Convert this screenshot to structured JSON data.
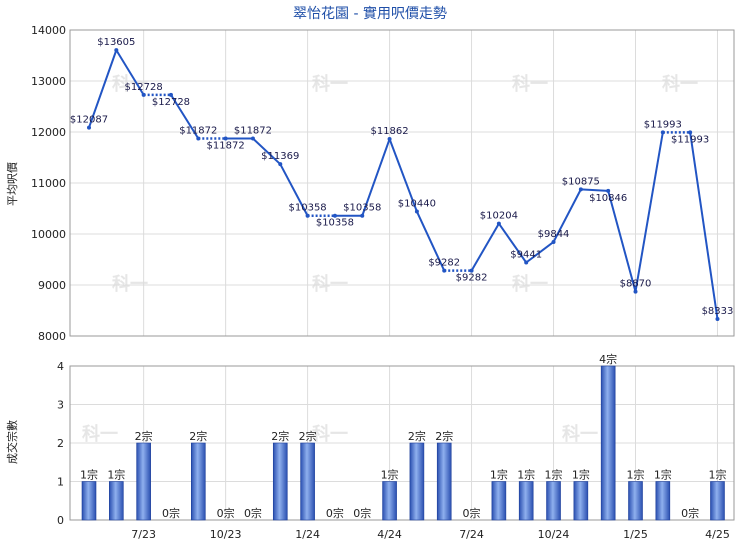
{
  "chart_data": [
    {
      "type": "line",
      "title": "翠怡花園 - 實用呎價走勢",
      "xlabel": "",
      "ylabel": "平均呎價",
      "ylim": [
        8000,
        14000
      ],
      "yticks": [
        8000,
        9000,
        10000,
        11000,
        12000,
        13000,
        14000
      ],
      "grid": true,
      "color": "#2255c4",
      "x": [
        "2023-05",
        "2023-06",
        "2023-07",
        "2023-08",
        "2023-09",
        "2023-10",
        "2023-11",
        "2023-12",
        "2024-01",
        "2024-02",
        "2024-03",
        "2024-04",
        "2024-05",
        "2024-06",
        "2024-07",
        "2024-08",
        "2024-09",
        "2024-10",
        "2024-11",
        "2024-12",
        "2025-01",
        "2025-02",
        "2025-03",
        "2025-04"
      ],
      "values": [
        12087,
        13605,
        12728,
        12728,
        11872,
        11872,
        11872,
        11369,
        10358,
        10358,
        10358,
        11862,
        10440,
        9282,
        9282,
        10204,
        9441,
        9844,
        10875,
        10846,
        8870,
        11993,
        11993,
        8333
      ],
      "labels": [
        "$12087",
        "$13605",
        "$12728",
        "$12728",
        "$11872",
        "$11872",
        "$11872",
        "$11369",
        "$10358",
        "$10358",
        "$10358",
        "$11862",
        "$10440",
        "$9282",
        "$9282",
        "$10204",
        "$9441",
        "$9844",
        "$10875",
        "$10846",
        "$8870",
        "$11993",
        "$11993",
        "$8333"
      ],
      "carried": [
        false,
        false,
        false,
        true,
        false,
        true,
        false,
        false,
        false,
        true,
        false,
        false,
        false,
        false,
        true,
        false,
        false,
        false,
        false,
        false,
        false,
        false,
        true,
        false
      ]
    },
    {
      "type": "bar",
      "xlabel": "",
      "ylabel": "成交宗數",
      "ylim": [
        0,
        4
      ],
      "yticks": [
        0,
        1,
        2,
        3,
        4
      ],
      "grid": true,
      "color": "#3a62c8",
      "x": [
        "2023-05",
        "2023-06",
        "2023-07",
        "2023-08",
        "2023-09",
        "2023-10",
        "2023-11",
        "2023-12",
        "2024-01",
        "2024-02",
        "2024-03",
        "2024-04",
        "2024-05",
        "2024-06",
        "2024-07",
        "2024-08",
        "2024-09",
        "2024-10",
        "2024-11",
        "2024-12",
        "2025-01",
        "2025-02",
        "2025-03",
        "2025-04"
      ],
      "values": [
        1,
        1,
        2,
        0,
        2,
        0,
        0,
        2,
        2,
        0,
        0,
        1,
        2,
        2,
        0,
        1,
        1,
        1,
        1,
        4,
        1,
        1,
        0,
        1
      ],
      "labels": [
        "1宗",
        "1宗",
        "2宗",
        "0宗",
        "2宗",
        "0宗",
        "0宗",
        "2宗",
        "2宗",
        "0宗",
        "0宗",
        "1宗",
        "2宗",
        "2宗",
        "0宗",
        "1宗",
        "1宗",
        "1宗",
        "1宗",
        "4宗",
        "1宗",
        "1宗",
        "0宗",
        "1宗"
      ],
      "xtick_labels": [
        "7/23",
        "10/23",
        "1/24",
        "4/24",
        "7/24",
        "10/24",
        "1/25",
        "4/25"
      ]
    }
  ],
  "watermark": "科一"
}
